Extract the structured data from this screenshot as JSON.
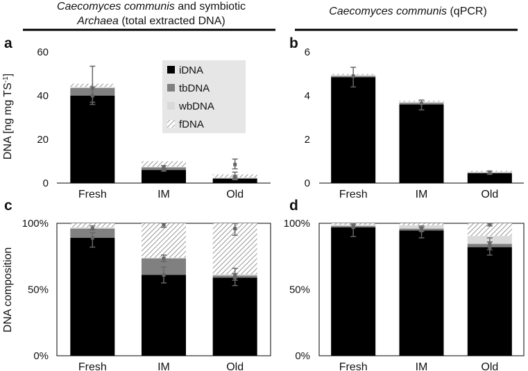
{
  "colors": {
    "iDNA": "#000000",
    "tbDNA": "#808080",
    "wbDNA": "#d9d9d9",
    "fDNA_pattern": "diagonal-hatch",
    "errorbar": "#666666",
    "legend_bg": "#e6e6e6"
  },
  "headers": {
    "left_line1_italic": "Caecomyces communis",
    "left_line1_rest": " and symbiotic",
    "left_line2_italic": "Archaea",
    "left_line2_rest": " (total extracted DNA)",
    "right_italic": "Caecomyces communis",
    "right_rest": " (qPCR)"
  },
  "y_labels": {
    "top": "DNA [ng mg TS",
    "top_sup": "-1",
    "top_close": "]",
    "bottom": "DNA composition"
  },
  "legend": {
    "placement": "top-right of panel a",
    "items": [
      "iDNA",
      "tbDNA",
      "wbDNA",
      "fDNA"
    ]
  },
  "chart_data": [
    {
      "panel": "a",
      "type": "bar",
      "stacked": true,
      "categories": [
        "Fresh",
        "IM",
        "Old"
      ],
      "ylim": [
        0,
        60
      ],
      "yticks": [
        "0",
        "20",
        "40",
        "60"
      ],
      "series": [
        {
          "name": "iDNA",
          "values": [
            40,
            6,
            2
          ]
        },
        {
          "name": "tbDNA",
          "values": [
            3.5,
            1.2,
            0.3
          ]
        },
        {
          "name": "wbDNA",
          "values": [
            0.5,
            0.3,
            0.2
          ]
        },
        {
          "name": "fDNA",
          "values": [
            1.5,
            2.5,
            1.5
          ]
        }
      ],
      "error_bars": [
        {
          "center": 40,
          "low": 36,
          "high": 44
        },
        {
          "center": 43.5,
          "low": 37,
          "high": 53.5
        },
        {
          "center": 6,
          "low": 5.5,
          "high": 6.5
        },
        {
          "center": 7.2,
          "low": 6.5,
          "high": 8
        },
        {
          "center": 8.5,
          "low": 6.5,
          "high": 11
        },
        {
          "center": 2.3,
          "low": 1.8,
          "high": 2.8
        },
        {
          "center": 3,
          "low": 1.5,
          "high": 5
        }
      ]
    },
    {
      "panel": "b",
      "type": "bar",
      "stacked": true,
      "categories": [
        "Fresh",
        "IM",
        "Old"
      ],
      "ylim": [
        0,
        6
      ],
      "yticks": [
        "0",
        "2",
        "4",
        "6"
      ],
      "series": [
        {
          "name": "iDNA",
          "values": [
            4.85,
            3.6,
            0.45
          ]
        },
        {
          "name": "tbDNA",
          "values": [
            0.05,
            0.07,
            0.03
          ]
        },
        {
          "name": "wbDNA",
          "values": [
            0.05,
            0.05,
            0.04
          ]
        },
        {
          "name": "fDNA",
          "values": [
            0.05,
            0.05,
            0.05
          ]
        }
      ],
      "error_bars": [
        {
          "center": 4.9,
          "low": 4.4,
          "high": 5.3
        },
        {
          "center": 3.65,
          "low": 3.35,
          "high": 3.8
        },
        {
          "center": 0.5,
          "low": 0.4,
          "high": 0.55
        }
      ]
    },
    {
      "panel": "c",
      "type": "bar",
      "stacked": true,
      "categories": [
        "Fresh",
        "IM",
        "Old"
      ],
      "ylim": [
        0,
        100
      ],
      "yticks": [
        "0%",
        "50%",
        "100%"
      ],
      "series": [
        {
          "name": "iDNA",
          "values": [
            89,
            61,
            59
          ]
        },
        {
          "name": "tbDNA",
          "values": [
            7,
            12.5,
            1.5
          ]
        },
        {
          "name": "wbDNA",
          "values": [
            1,
            0.5,
            1
          ]
        },
        {
          "name": "fDNA",
          "values": [
            3,
            26,
            38.5
          ]
        }
      ],
      "error_bars": [
        {
          "center": 89,
          "low": 82,
          "high": 93
        },
        {
          "center": 96,
          "low": 95,
          "high": 98
        },
        {
          "center": 61,
          "low": 55,
          "high": 67
        },
        {
          "center": 73.5,
          "low": 71,
          "high": 76
        },
        {
          "center": 99,
          "low": 97,
          "high": 100
        },
        {
          "center": 59,
          "low": 53,
          "high": 62
        },
        {
          "center": 61,
          "low": 57,
          "high": 66
        },
        {
          "center": 96,
          "low": 91,
          "high": 100
        }
      ]
    },
    {
      "panel": "d",
      "type": "bar",
      "stacked": true,
      "categories": [
        "Fresh",
        "IM",
        "Old"
      ],
      "ylim": [
        0,
        100
      ],
      "yticks": [
        "0%",
        "50%",
        "100%"
      ],
      "series": [
        {
          "name": "iDNA",
          "values": [
            97,
            94.5,
            82
          ]
        },
        {
          "name": "tbDNA",
          "values": [
            1,
            1.5,
            2.5
          ]
        },
        {
          "name": "wbDNA",
          "values": [
            1,
            2.5,
            6
          ]
        },
        {
          "name": "fDNA",
          "values": [
            1,
            1.5,
            9.5
          ]
        }
      ],
      "error_bars": [
        {
          "center": 97,
          "low": 90,
          "high": 99
        },
        {
          "center": 98,
          "low": 97,
          "high": 100
        },
        {
          "center": 94.5,
          "low": 89,
          "high": 97
        },
        {
          "center": 96,
          "low": 94,
          "high": 98
        },
        {
          "center": 82,
          "low": 76,
          "high": 86
        },
        {
          "center": 84.5,
          "low": 80,
          "high": 89
        },
        {
          "center": 99,
          "low": 98,
          "high": 100
        }
      ]
    }
  ]
}
